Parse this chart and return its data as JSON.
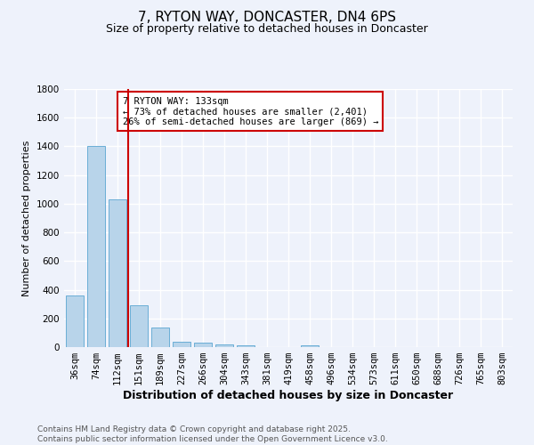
{
  "title": "7, RYTON WAY, DONCASTER, DN4 6PS",
  "subtitle": "Size of property relative to detached houses in Doncaster",
  "xlabel": "Distribution of detached houses by size in Doncaster",
  "ylabel": "Number of detached properties",
  "categories": [
    "36sqm",
    "74sqm",
    "112sqm",
    "151sqm",
    "189sqm",
    "227sqm",
    "266sqm",
    "304sqm",
    "343sqm",
    "381sqm",
    "419sqm",
    "458sqm",
    "496sqm",
    "534sqm",
    "573sqm",
    "611sqm",
    "650sqm",
    "688sqm",
    "726sqm",
    "765sqm",
    "803sqm"
  ],
  "values": [
    360,
    1400,
    1030,
    290,
    135,
    40,
    30,
    20,
    10,
    0,
    0,
    15,
    0,
    0,
    0,
    0,
    0,
    0,
    0,
    0,
    0
  ],
  "bar_color": "#b8d4ea",
  "bar_edge_color": "#6aaed6",
  "vline_x_index": 2.5,
  "vline_color": "#cc0000",
  "annotation_line1": "7 RYTON WAY: 133sqm",
  "annotation_line2": "← 73% of detached houses are smaller (2,401)",
  "annotation_line3": "26% of semi-detached houses are larger (869) →",
  "box_edge_color": "#cc0000",
  "ylim": [
    0,
    1800
  ],
  "yticks": [
    0,
    200,
    400,
    600,
    800,
    1000,
    1200,
    1400,
    1600,
    1800
  ],
  "footer_line1": "Contains HM Land Registry data © Crown copyright and database right 2025.",
  "footer_line2": "Contains public sector information licensed under the Open Government Licence v3.0.",
  "bg_color": "#eef2fb",
  "grid_color": "#ffffff",
  "title_fontsize": 11,
  "subtitle_fontsize": 9,
  "xlabel_fontsize": 9,
  "ylabel_fontsize": 8,
  "tick_fontsize": 7.5,
  "annotation_fontsize": 7.5,
  "footer_fontsize": 6.5
}
